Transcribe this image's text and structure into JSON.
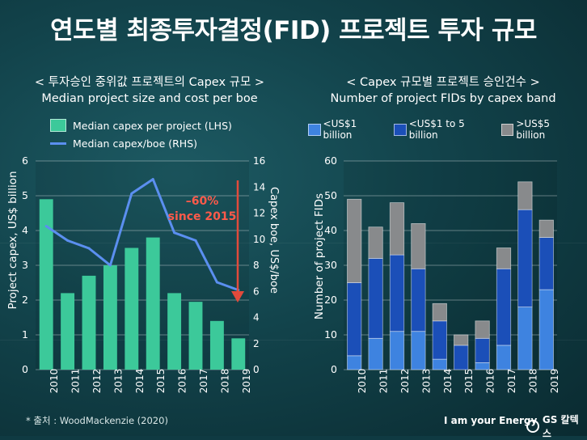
{
  "title": "연도별 최종투자결정(FID) 프로젝트 투자 규모",
  "left": {
    "subtitle_kr": "< 투자승인 중위값 프로젝트의 Capex 규모 >",
    "subtitle_en": "Median project size and cost per boe",
    "legend_bar": "Median capex per project (LHS)",
    "legend_line": "Median capex/boe (RHS)"
  },
  "right": {
    "subtitle_kr": "< Capex 규모별 프로젝트 승인건수 >",
    "subtitle_en": "Number of project FIDs by capex band",
    "legend": [
      "<US$1 billion",
      "<US$1 to 5 billion",
      ">US$5 billion"
    ]
  },
  "colors": {
    "bar": "#3cc99a",
    "line": "#5b8ff0",
    "arrow": "#e24a3b",
    "annot": "#ff5a4a",
    "s1": "#3e83e0",
    "s2": "#1b4fb8",
    "s3": "#888a8c"
  },
  "source": "* 출처 : WoodMackenzie (2020)",
  "brand": "I am your Energy",
  "logo": "GS 칼텍스",
  "chart_data": [
    {
      "type": "bar",
      "title": "Median project size and cost per boe",
      "categories": [
        "2010",
        "2011",
        "2012",
        "2013",
        "2014",
        "2015",
        "2016",
        "2017",
        "2018",
        "2019"
      ],
      "series": [
        {
          "name": "Median capex per project (LHS)",
          "axis": "left",
          "kind": "bar",
          "values": [
            4.9,
            2.2,
            2.7,
            3.0,
            3.5,
            3.8,
            2.2,
            1.95,
            1.4,
            0.9
          ]
        },
        {
          "name": "Median capex/boe (RHS)",
          "axis": "right",
          "kind": "line",
          "values": [
            11.0,
            9.9,
            9.3,
            8.0,
            13.5,
            14.6,
            10.5,
            9.9,
            6.7,
            6.1
          ]
        }
      ],
      "ylabel": "Project capex, US$ billion",
      "y2label": "Capex boe, US$/boe",
      "ylim": [
        0,
        6
      ],
      "yticks": [
        0,
        1,
        2,
        3,
        4,
        5,
        6
      ],
      "y2lim": [
        0,
        16
      ],
      "y2ticks": [
        0,
        2,
        4,
        6,
        8,
        10,
        12,
        14,
        16
      ],
      "annotation": {
        "line1": "–60%",
        "line2": "since 2015"
      }
    },
    {
      "type": "bar",
      "stacked": true,
      "title": "Number of project FIDs by capex band",
      "categories": [
        "2010",
        "2011",
        "2012",
        "2013",
        "2014",
        "2015",
        "2016",
        "2017",
        "2018",
        "2019"
      ],
      "series": [
        {
          "name": "<US$1 billion",
          "values": [
            4,
            9,
            11,
            11,
            3,
            0,
            2,
            7,
            18,
            23
          ]
        },
        {
          "name": "<US$1 to 5 billion",
          "values": [
            21,
            23,
            22,
            18,
            11,
            7,
            7,
            22,
            28,
            15
          ]
        },
        {
          "name": ">US$5 billion",
          "values": [
            24,
            9,
            15,
            13,
            5,
            3,
            5,
            6,
            8,
            5
          ]
        }
      ],
      "ylabel": "Number of project FIDs",
      "ylim": [
        0,
        60
      ],
      "yticks": [
        0,
        10,
        20,
        30,
        40,
        50,
        60
      ]
    }
  ]
}
